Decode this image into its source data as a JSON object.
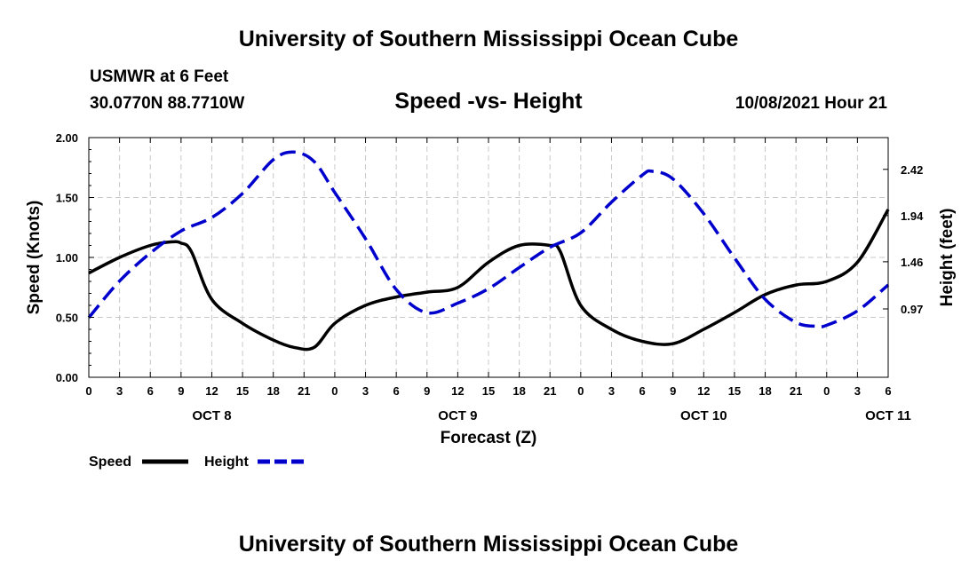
{
  "header": {
    "title": "University of Southern Mississippi Ocean Cube",
    "station": "USMWR at 6 Feet",
    "coordinates": "30.0770N  88.7710W",
    "datetime": "10/08/2021 Hour 21"
  },
  "footer": {
    "title": "University of Southern Mississippi Ocean Cube"
  },
  "chart_data": {
    "type": "line",
    "title": "Speed -vs- Height",
    "xlabel": "Forecast (Z)",
    "ylabel_left": "Speed (Knots)",
    "ylabel_right": "Height (feet)",
    "x_hours": [
      0,
      3,
      6,
      9,
      12,
      15,
      18,
      21,
      24,
      27,
      30,
      33,
      36,
      39,
      42,
      45,
      48,
      51,
      54,
      57,
      60,
      63,
      66,
      69,
      72,
      75,
      78
    ],
    "x_tick_labels": [
      "0",
      "3",
      "6",
      "9",
      "12",
      "15",
      "18",
      "21",
      "0",
      "3",
      "6",
      "9",
      "12",
      "15",
      "18",
      "21",
      "0",
      "3",
      "6",
      "9",
      "12",
      "15",
      "18",
      "21",
      "0",
      "3",
      "6"
    ],
    "date_labels": [
      {
        "label": "OCT 8",
        "hour": 12
      },
      {
        "label": "OCT 9",
        "hour": 36
      },
      {
        "label": "OCT 10",
        "hour": 60
      },
      {
        "label": "OCT 11",
        "hour": 78
      }
    ],
    "xlim": [
      0,
      78
    ],
    "ylim_left": [
      0.0,
      2.0
    ],
    "y_left_ticks": [
      "0.00",
      "0.50",
      "1.00",
      "1.50",
      "2.00"
    ],
    "ylim_right": [
      0.26,
      2.75
    ],
    "y_right_ticks": [
      "0.97",
      "1.46",
      "1.94",
      "2.42"
    ],
    "grid": true,
    "series": [
      {
        "name": "Speed",
        "axis": "left",
        "color": "#000000",
        "style": "solid",
        "x": [
          0,
          3,
          6,
          8,
          9,
          10,
          12,
          15,
          18,
          20,
          22,
          24,
          27,
          30,
          33,
          36,
          39,
          42,
          45,
          46,
          48,
          51,
          54,
          57,
          60,
          63,
          66,
          69,
          72,
          75,
          78
        ],
        "y": [
          0.87,
          1.0,
          1.1,
          1.13,
          1.12,
          1.05,
          0.65,
          0.45,
          0.31,
          0.25,
          0.25,
          0.45,
          0.6,
          0.67,
          0.71,
          0.75,
          0.96,
          1.1,
          1.1,
          1.05,
          0.6,
          0.4,
          0.3,
          0.28,
          0.4,
          0.54,
          0.69,
          0.77,
          0.8,
          0.96,
          1.4
        ]
      },
      {
        "name": "Height",
        "axis": "right",
        "color": "#0000cc",
        "style": "dashed",
        "x": [
          0,
          3,
          6,
          9,
          12,
          15,
          18,
          20,
          22,
          24,
          27,
          30,
          33,
          36,
          39,
          42,
          45,
          48,
          51,
          54,
          55,
          57,
          60,
          63,
          66,
          69,
          71,
          72,
          75,
          78
        ],
        "y": [
          0.88,
          1.26,
          1.55,
          1.78,
          1.92,
          2.17,
          2.52,
          2.6,
          2.5,
          2.18,
          1.7,
          1.17,
          0.93,
          1.03,
          1.18,
          1.4,
          1.61,
          1.76,
          2.08,
          2.36,
          2.4,
          2.32,
          1.96,
          1.5,
          1.07,
          0.83,
          0.79,
          0.8,
          0.95,
          1.22
        ]
      }
    ],
    "legend": [
      {
        "label": "Speed",
        "color": "#000000",
        "style": "solid"
      },
      {
        "label": "Height",
        "color": "#0000cc",
        "style": "dashed"
      }
    ],
    "legend_placement": "bottom-left"
  }
}
